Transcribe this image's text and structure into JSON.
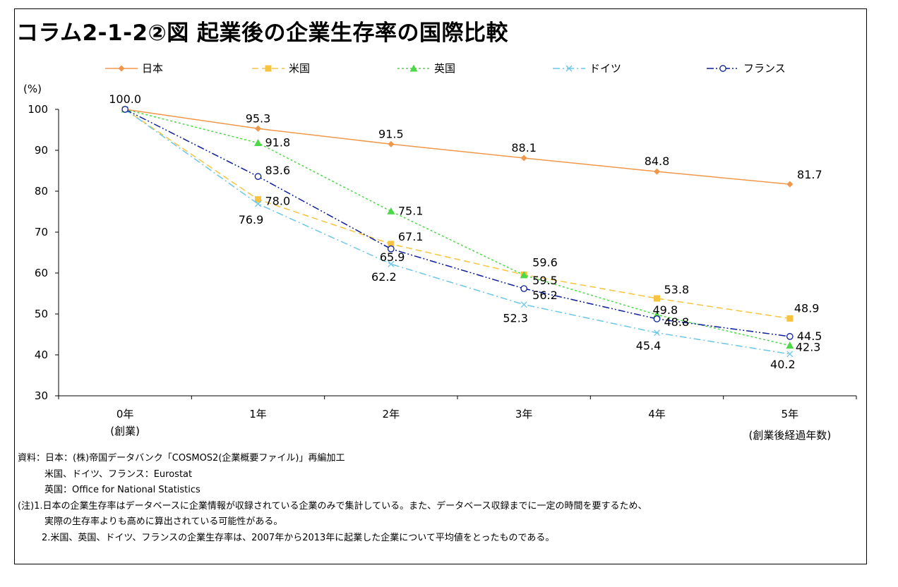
{
  "title": "コラム2-1-2②図 起業後の企業生存率の国際比較",
  "chart_data": {
    "type": "line",
    "ylabel": "(%)",
    "ylim": [
      30,
      100
    ],
    "yticks": [
      30,
      40,
      50,
      60,
      70,
      80,
      90,
      100
    ],
    "categories": [
      "0年",
      "1年",
      "2年",
      "3年",
      "4年",
      "5年"
    ],
    "category_sublabel": "(創業)",
    "xlabel": "(創業後経過年数)",
    "grid": false,
    "legend_position": "top",
    "series": [
      {
        "name": "日本",
        "values": [
          100.0,
          95.3,
          91.5,
          88.1,
          84.8,
          81.7
        ],
        "labels": [
          "100.0",
          "95.3",
          "91.5",
          "88.1",
          "84.8",
          "81.7"
        ],
        "color": "#F0974A",
        "marker": "diamond",
        "dash": "solid"
      },
      {
        "name": "米国",
        "values": [
          100.0,
          78.0,
          67.1,
          59.6,
          53.8,
          48.9
        ],
        "labels": [
          "",
          "78.0",
          "67.1",
          "59.6",
          "53.8",
          "48.9"
        ],
        "color": "#F8C440",
        "marker": "square",
        "dash": "dashed"
      },
      {
        "name": "英国",
        "values": [
          100.0,
          91.8,
          75.1,
          59.5,
          49.8,
          42.3
        ],
        "labels": [
          "",
          "91.8",
          "75.1",
          "59.5",
          "49.8",
          "42.3"
        ],
        "color": "#4CD847",
        "marker": "triangle",
        "dash": "dotted"
      },
      {
        "name": "ドイツ",
        "values": [
          100.0,
          76.9,
          62.2,
          52.3,
          45.4,
          40.2
        ],
        "labels": [
          "",
          "76.9",
          "62.2",
          "52.3",
          "45.4",
          "40.2"
        ],
        "color": "#6CC6E8",
        "marker": "x",
        "dash": "dashdot"
      },
      {
        "name": "フランス",
        "values": [
          100.0,
          83.6,
          65.9,
          56.2,
          48.8,
          44.5
        ],
        "labels": [
          "",
          "83.6",
          "65.9",
          "56.2",
          "48.8",
          "44.5"
        ],
        "color": "#0A1E9A",
        "marker": "circle",
        "dash": "dashdotdot"
      }
    ]
  },
  "notes": {
    "source_1": "資料：日本：(株)帝国データバンク「COSMOS2(企業概要ファイル)」再編加工",
    "source_2": "米国、ドイツ、フランス：Eurostat",
    "source_3": "英国：Office for National Statistics",
    "note_1a": "(注)1.日本の企業生存率はデータベースに企業情報が収録されている企業のみで集計している。また、データベース収録までに一定の時間を要するため、",
    "note_1b": "実際の生存率よりも高めに算出されている可能性がある。",
    "note_2": "2.米国、英国、ドイツ、フランスの企業生存率は、2007年から2013年に起業した企業について平均値をとったものである。"
  }
}
